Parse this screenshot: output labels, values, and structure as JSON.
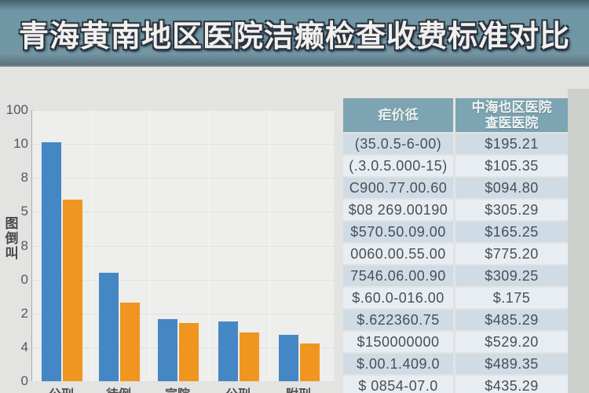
{
  "banner": {
    "title": "青海黄南地区医院洁癞检查收费标准对比"
  },
  "chart_data": {
    "type": "bar",
    "categories": [
      "公刑",
      "待例",
      "宣院",
      "公刑",
      "附刑"
    ],
    "series": [
      {
        "name": "blue-series",
        "color": "#4587c5",
        "values": [
          88,
          40,
          23,
          22,
          17
        ]
      },
      {
        "name": "orange-series",
        "color": "#f0951f",
        "values": [
          67,
          29,
          21.5,
          18,
          14
        ]
      }
    ],
    "title": "",
    "xlabel": "",
    "ylabel": "图倒叫",
    "ylabel_chars": [
      "图",
      "倒",
      "叫"
    ],
    "y_tick_labels": [
      "100",
      "10",
      "8",
      "5",
      "8",
      "0",
      "2",
      "4",
      "0"
    ],
    "ylim": [
      0,
      100
    ],
    "grid": true,
    "legend": "none"
  },
  "table": {
    "headers": {
      "fee_label": "疟价彽",
      "hospital_line1": "中海也区医院",
      "hospital_line2": "查医医院"
    },
    "rows": [
      {
        "fee": "(35.0.5-6-00)",
        "price": "$195.21"
      },
      {
        "fee": "(.3.0.5.000-15)",
        "price": "$105.35"
      },
      {
        "fee": "C900.77.00.60",
        "price": "$094.80"
      },
      {
        "fee": "$08 269.00190",
        "price": "$305.29"
      },
      {
        "fee": "$570.50.09.00",
        "price": "$165.25"
      },
      {
        "fee": "0060.00.55.00",
        "price": "$775.20"
      },
      {
        "fee": "7546.06.00.90",
        "price": "$309.25"
      },
      {
        "fee": "$.60.0-016.00",
        "price": "$.175"
      },
      {
        "fee": "$.622360.75",
        "price": "$485.29"
      },
      {
        "fee": "$150000000",
        "price": "$529.20"
      },
      {
        "fee": "$.00.1.409.0",
        "price": "$489.35"
      },
      {
        "fee": "$ 0854-07.0",
        "price": "$435.29"
      }
    ]
  },
  "colors": {
    "banner_bg": "#7095a3",
    "bar_blue": "#4587c5",
    "bar_orange": "#f0951f",
    "table_header_bg": "#7da4b2",
    "row_odd_bg": "#cfdbe5",
    "row_even_bg": "#e7edf2",
    "plot_bg": "#eeeeec"
  }
}
